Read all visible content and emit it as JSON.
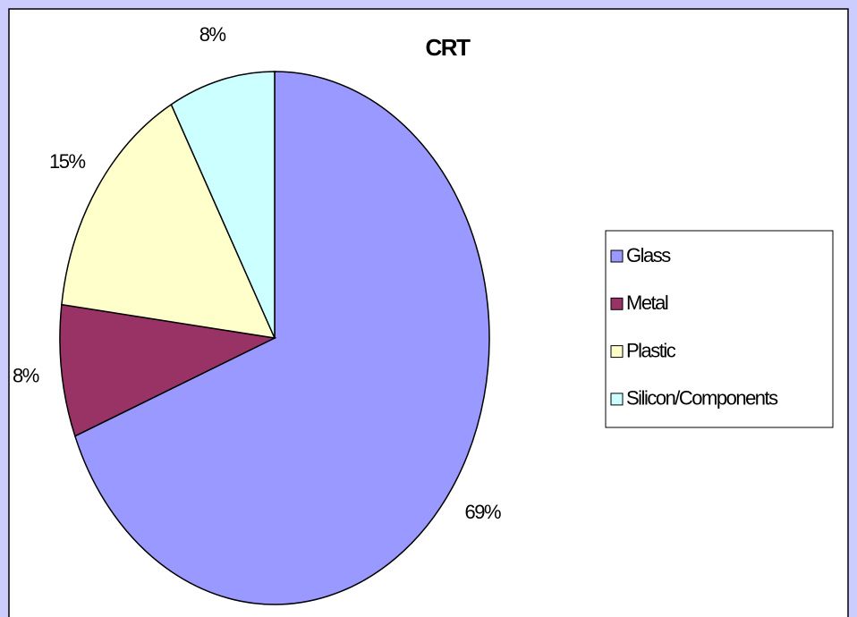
{
  "chart_data": {
    "type": "pie",
    "title": "CRT",
    "categories": [
      "Glass",
      "Metal",
      "Plastic",
      "Silicon/Components"
    ],
    "values": [
      69,
      8,
      15,
      8
    ],
    "value_labels": [
      "69%",
      "8%",
      "15%",
      "8%"
    ],
    "colors": [
      "#9999ff",
      "#993366",
      "#ffffcc",
      "#ccffff"
    ],
    "legend": "right"
  }
}
